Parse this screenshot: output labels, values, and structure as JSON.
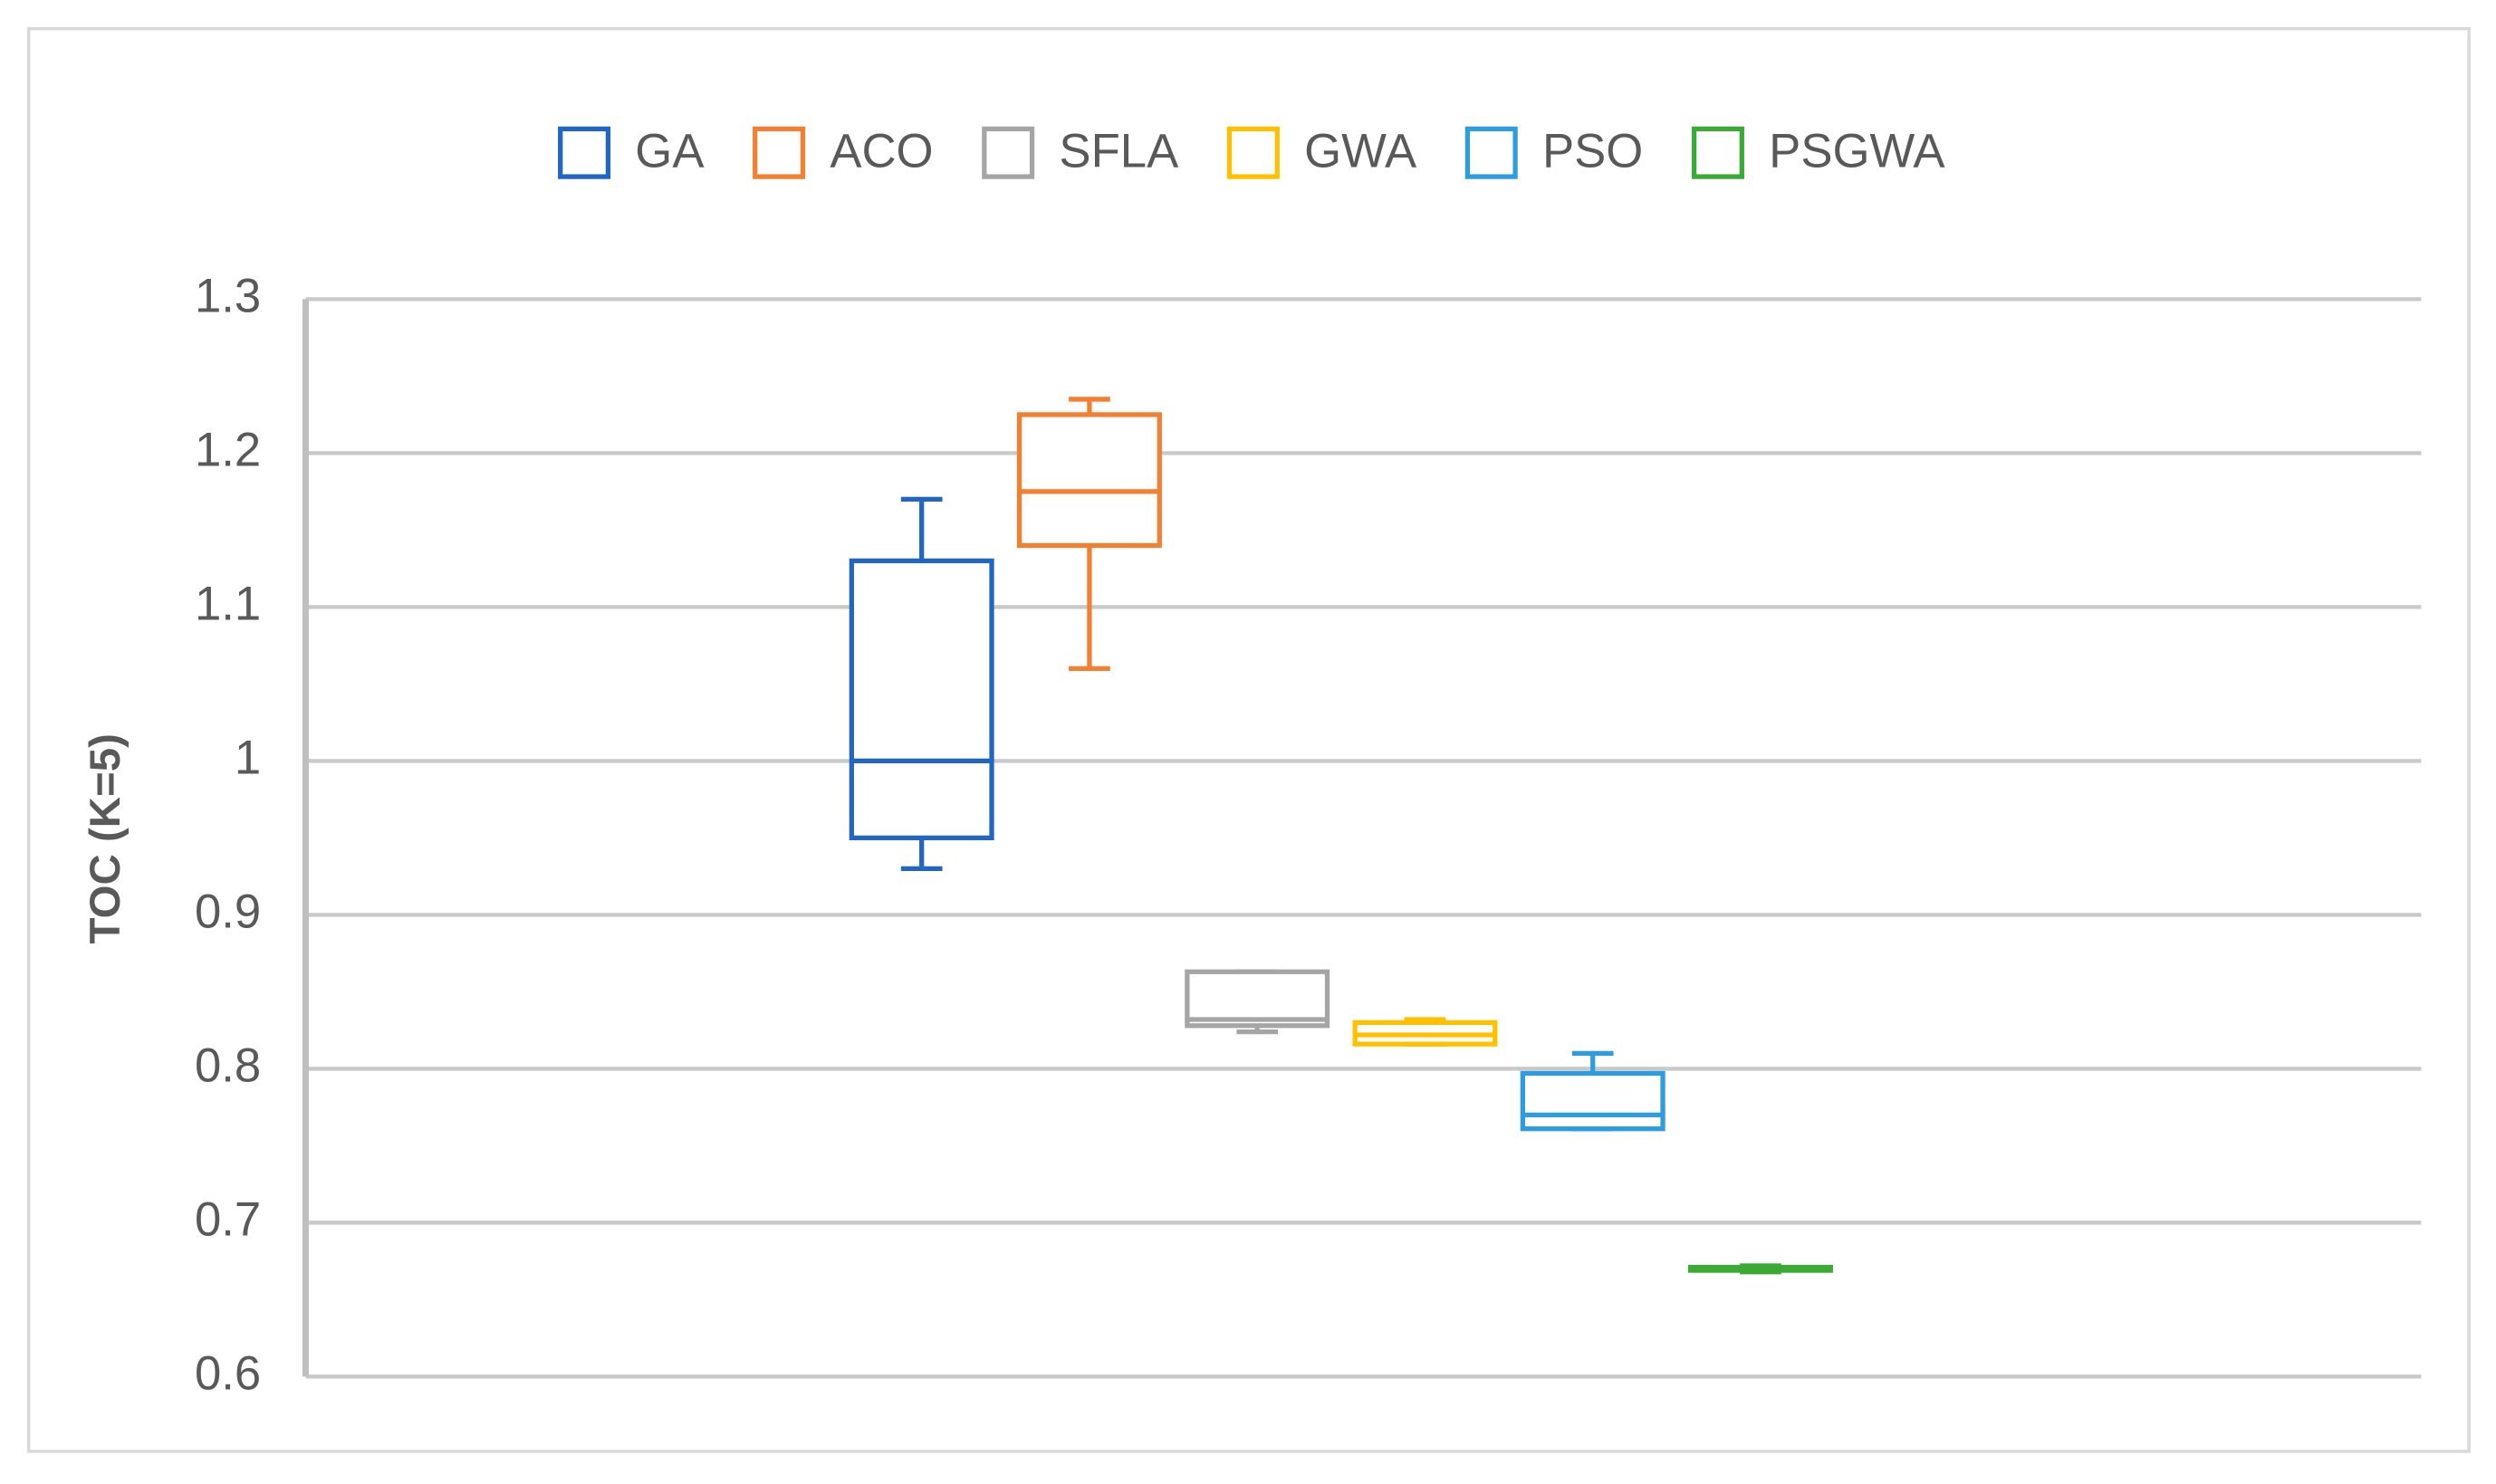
{
  "chart_data": {
    "type": "box",
    "y_label": "TOC (K=5)",
    "ylim": [
      0.6,
      1.3
    ],
    "yticks": [
      0.6,
      0.7,
      0.8,
      0.9,
      1,
      1.1,
      1.2,
      1.3
    ],
    "grid": true,
    "legend": "top",
    "series": [
      {
        "name": "GA",
        "color": "#2266c4",
        "min": 0.93,
        "q1": 0.95,
        "median": 1.0,
        "q3": 1.13,
        "max": 1.17
      },
      {
        "name": "ACO",
        "color": "#f37f30",
        "min": 1.06,
        "q1": 1.14,
        "median": 1.175,
        "q3": 1.225,
        "max": 1.235
      },
      {
        "name": "SFLA",
        "color": "#a5a5a5",
        "min": 0.824,
        "q1": 0.828,
        "median": 0.832,
        "q3": 0.863,
        "max": 0.863
      },
      {
        "name": "GWA",
        "color": "#ffc000",
        "min": 0.816,
        "q1": 0.816,
        "median": 0.822,
        "q3": 0.83,
        "max": 0.832
      },
      {
        "name": "PSO",
        "color": "#2e9de0",
        "min": 0.761,
        "q1": 0.761,
        "median": 0.77,
        "q3": 0.797,
        "max": 0.81
      },
      {
        "name": "PSGWA",
        "color": "#3aaa35",
        "min": 0.668,
        "q1": 0.669,
        "median": 0.67,
        "q3": 0.671,
        "max": 0.672
      }
    ]
  }
}
